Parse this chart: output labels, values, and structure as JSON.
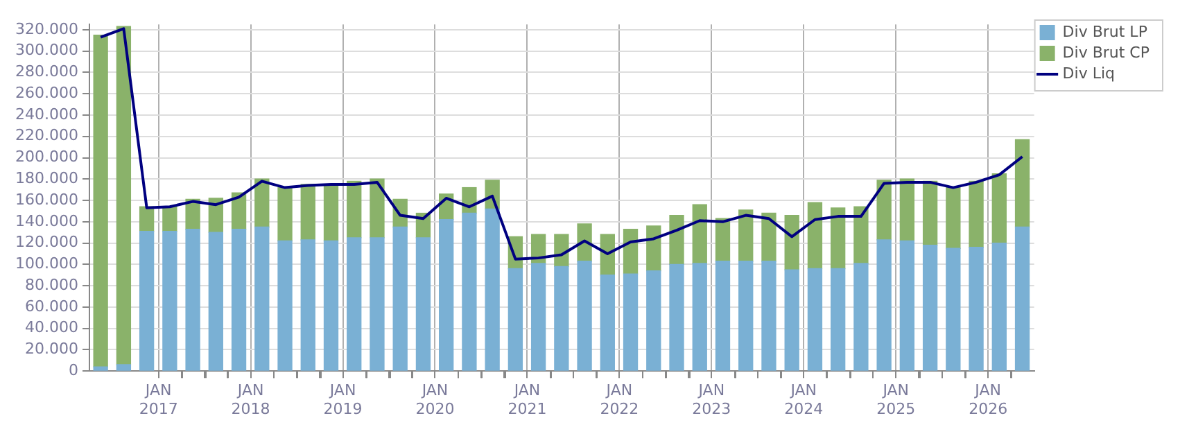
{
  "chart_data": {
    "type": "bar",
    "stacked": true,
    "x": [
      "2016-05-15",
      "2016-08-15",
      "2016-11-15",
      "2017-02-15",
      "2017-05-15",
      "2017-08-15",
      "2017-11-15",
      "2018-02-15",
      "2018-05-15",
      "2018-08-15",
      "2018-11-15",
      "2019-02-15",
      "2019-05-15",
      "2019-08-15",
      "2019-11-15",
      "2020-02-15",
      "2020-05-15",
      "2020-08-15",
      "2020-11-15",
      "2021-02-15",
      "2021-05-15",
      "2021-08-15",
      "2021-11-15",
      "2022-02-15",
      "2022-05-15",
      "2022-08-15",
      "2022-11-15",
      "2023-02-15",
      "2023-05-15",
      "2023-08-15",
      "2023-11-15",
      "2024-02-15",
      "2024-05-15",
      "2024-08-15",
      "2024-11-15",
      "2025-02-15",
      "2025-05-15",
      "2025-08-15",
      "2025-11-15",
      "2026-02-15",
      "2026-05-15"
    ],
    "series": [
      {
        "name": "Div Brut LP",
        "color": "#7ab0d4",
        "values": [
          4000,
          6000,
          131000,
          131000,
          133000,
          130000,
          133000,
          135000,
          122000,
          123000,
          122000,
          125000,
          125000,
          135000,
          125000,
          142000,
          148000,
          152000,
          96000,
          101000,
          98000,
          103000,
          90000,
          91000,
          94000,
          100000,
          101000,
          103000,
          103000,
          103000,
          95000,
          96000,
          96000,
          101000,
          123000,
          122000,
          118000,
          115000,
          116000,
          120000,
          135000
        ]
      },
      {
        "name": "Div Brut CP",
        "color": "#8ab26a",
        "values": [
          311000,
          317000,
          23000,
          23000,
          28000,
          32000,
          34000,
          45000,
          50000,
          52000,
          52000,
          53000,
          55000,
          26000,
          23000,
          24000,
          24000,
          27000,
          30000,
          27000,
          30000,
          35000,
          38000,
          42000,
          42000,
          46000,
          55000,
          40000,
          48000,
          45000,
          51000,
          62000,
          57000,
          53000,
          56000,
          58000,
          60000,
          57000,
          62000,
          65000,
          82000
        ]
      },
      {
        "name": "Div Liq",
        "type": "line",
        "color": "#000080",
        "values": [
          313000,
          321000,
          153000,
          154000,
          159000,
          156000,
          163000,
          178000,
          172000,
          174000,
          175000,
          175000,
          177000,
          146000,
          143000,
          162000,
          154000,
          164000,
          105000,
          106000,
          109000,
          122000,
          110000,
          121000,
          124000,
          132000,
          141000,
          140000,
          146000,
          143000,
          126000,
          142000,
          145000,
          145000,
          176000,
          177000,
          177000,
          172000,
          177000,
          184000,
          201000
        ],
        "marker": "none"
      }
    ],
    "xlim": [
      "2016-04",
      "2026-07"
    ],
    "xticks": [
      {
        "value": "2017-01",
        "label": "JAN 2017"
      },
      {
        "value": "2017-04",
        "label": null
      },
      {
        "value": "2017-07",
        "label": null
      },
      {
        "value": "2017-10",
        "label": null
      },
      {
        "value": "2018-01",
        "label": "JAN 2018"
      },
      {
        "value": "2018-04",
        "label": null
      },
      {
        "value": "2018-07",
        "label": null
      },
      {
        "value": "2018-10",
        "label": null
      },
      {
        "value": "2019-01",
        "label": "JAN 2019"
      },
      {
        "value": "2019-04",
        "label": null
      },
      {
        "value": "2019-07",
        "label": null
      },
      {
        "value": "2019-10",
        "label": null
      },
      {
        "value": "2020-01",
        "label": "JAN 2020"
      },
      {
        "value": "2020-04",
        "label": null
      },
      {
        "value": "2020-07",
        "label": null
      },
      {
        "value": "2020-10",
        "label": null
      },
      {
        "value": "2021-01",
        "label": "JAN 2021"
      },
      {
        "value": "2021-04",
        "label": null
      },
      {
        "value": "2021-07",
        "label": null
      },
      {
        "value": "2021-10",
        "label": null
      },
      {
        "value": "2022-01",
        "label": "JAN 2022"
      },
      {
        "value": "2022-04",
        "label": null
      },
      {
        "value": "2022-07",
        "label": null
      },
      {
        "value": "2022-10",
        "label": null
      },
      {
        "value": "2023-01",
        "label": "JAN 2023"
      },
      {
        "value": "2023-04",
        "label": null
      },
      {
        "value": "2023-07",
        "label": null
      },
      {
        "value": "2023-10",
        "label": null
      },
      {
        "value": "2024-01",
        "label": "JAN 2024"
      },
      {
        "value": "2024-04",
        "label": null
      },
      {
        "value": "2024-07",
        "label": null
      },
      {
        "value": "2024-10",
        "label": null
      },
      {
        "value": "2025-01",
        "label": "JAN 2025"
      },
      {
        "value": "2025-04",
        "label": null
      },
      {
        "value": "2025-07",
        "label": null
      },
      {
        "value": "2025-10",
        "label": null
      },
      {
        "value": "2026-01",
        "label": "JAN 2026"
      },
      {
        "value": "2026-04",
        "label": null
      }
    ],
    "ylim": [
      0,
      325000
    ],
    "yticks": [
      0,
      {
        "value": 20000,
        "label": "20.000"
      },
      {
        "value": 40000,
        "label": "40.000"
      },
      {
        "value": 60000,
        "label": "60.000"
      },
      {
        "value": 80000,
        "label": "80.000"
      },
      {
        "value": 100000,
        "label": "100.000"
      },
      {
        "value": 120000,
        "label": "120.000"
      },
      {
        "value": 140000,
        "label": "140.000"
      },
      {
        "value": 160000,
        "label": "160.000"
      },
      {
        "value": 180000,
        "label": "180.000"
      },
      {
        "value": 200000,
        "label": "200.000"
      },
      {
        "value": 220000,
        "label": "220.000"
      },
      {
        "value": 240000,
        "label": "240.000"
      },
      {
        "value": 260000,
        "label": "260.000"
      },
      {
        "value": 280000,
        "label": "280.000"
      },
      {
        "value": 300000,
        "label": "300.000"
      },
      {
        "value": 320000,
        "label": "320.000"
      }
    ],
    "grid": true,
    "legend": "top right"
  }
}
